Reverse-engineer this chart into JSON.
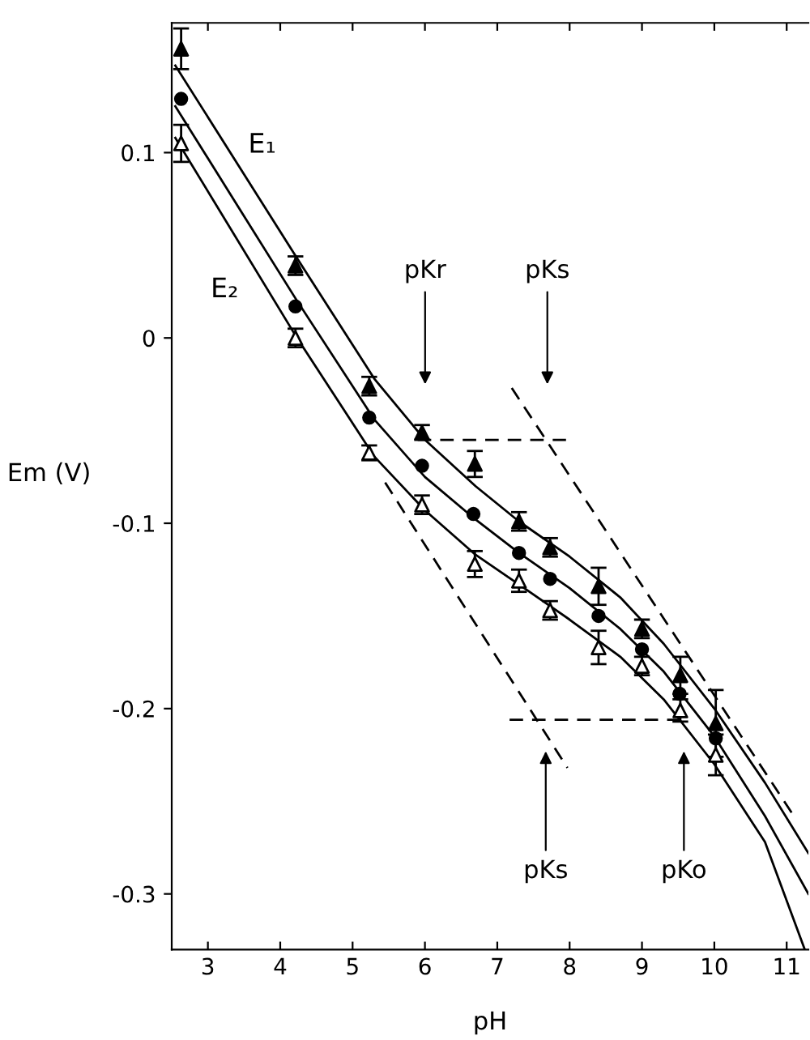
{
  "chart_data": {
    "type": "scatter",
    "xlabel": "pH",
    "ylabel": "Em (V)",
    "xlim": [
      2.5,
      11.3
    ],
    "ylim": [
      -0.33,
      0.17
    ],
    "xticks": [
      3,
      4,
      5,
      6,
      7,
      8,
      9,
      10,
      11
    ],
    "yticks": [
      -0.3,
      -0.2,
      -0.1,
      0,
      0.1
    ],
    "grid": false,
    "series": [
      {
        "marker": "triangle",
        "color": "#000000",
        "x": [
          2.63,
          4.21,
          5.23,
          5.96,
          6.69,
          7.3,
          7.73,
          8.4,
          9.0,
          9.53,
          10.02
        ],
        "values": [
          0.156,
          0.039,
          -0.026,
          -0.051,
          -0.068,
          -0.099,
          -0.113,
          -0.134,
          -0.157,
          -0.182,
          -0.208
        ],
        "errors": [
          0.011,
          0.005,
          0.005,
          0.004,
          0.007,
          0.005,
          0.005,
          0.01,
          0.005,
          0.01,
          0.018
        ]
      },
      {
        "marker": "circle",
        "color": "#000000",
        "x": [
          2.63,
          4.21,
          5.23,
          5.96,
          6.67,
          7.3,
          7.73,
          8.4,
          9.0,
          9.52,
          10.02
        ],
        "values": [
          0.129,
          0.017,
          -0.043,
          -0.069,
          -0.095,
          -0.116,
          -0.13,
          -0.15,
          -0.168,
          -0.192,
          -0.216
        ]
      },
      {
        "marker": "triangle-open",
        "color": "#000000",
        "x": [
          2.63,
          4.21,
          5.23,
          5.96,
          6.69,
          7.3,
          7.73,
          8.4,
          9.0,
          9.53,
          10.02
        ],
        "values": [
          0.105,
          0.0,
          -0.062,
          -0.09,
          -0.122,
          -0.131,
          -0.147,
          -0.167,
          -0.177,
          -0.201,
          -0.225
        ],
        "errors": [
          0.01,
          0.005,
          0.004,
          0.005,
          0.007,
          0.006,
          0.005,
          0.009,
          0.005,
          0.006,
          0.011
        ]
      },
      {
        "type": "line",
        "color": "#000000",
        "line_style": "solid",
        "x": [
          2.55,
          4.2,
          5.3,
          6.0,
          6.7,
          7.3,
          8.0,
          8.7,
          9.3,
          10.0,
          10.7,
          11.3
        ],
        "values": [
          0.147,
          0.045,
          -0.022,
          -0.055,
          -0.08,
          -0.099,
          -0.118,
          -0.14,
          -0.165,
          -0.2,
          -0.24,
          -0.278
        ]
      },
      {
        "type": "line",
        "color": "#000000",
        "line_style": "solid",
        "x": [
          2.55,
          4.2,
          5.3,
          6.0,
          6.7,
          7.3,
          8.0,
          8.7,
          9.3,
          10.0,
          10.7,
          11.3
        ],
        "values": [
          0.125,
          0.022,
          -0.044,
          -0.075,
          -0.098,
          -0.116,
          -0.135,
          -0.157,
          -0.18,
          -0.215,
          -0.258,
          -0.3
        ]
      },
      {
        "type": "line",
        "color": "#000000",
        "line_style": "solid",
        "x": [
          2.55,
          4.2,
          5.3,
          6.0,
          6.7,
          7.3,
          8.0,
          8.7,
          9.3,
          10.0,
          10.7,
          11.25
        ],
        "values": [
          0.108,
          0.002,
          -0.064,
          -0.093,
          -0.117,
          -0.133,
          -0.152,
          -0.172,
          -0.195,
          -0.23,
          -0.272,
          -0.33
        ]
      },
      {
        "type": "line",
        "color": "#000000",
        "line_style": "dashed",
        "x": [
          5.9,
          7.95
        ],
        "values": [
          -0.055,
          -0.055
        ]
      },
      {
        "type": "line",
        "color": "#000000",
        "line_style": "dashed",
        "x": [
          7.17,
          9.58
        ],
        "values": [
          -0.206,
          -0.206
        ]
      },
      {
        "type": "line",
        "color": "#000000",
        "line_style": "dashed",
        "x": [
          5.45,
          7.97
        ],
        "values": [
          -0.078,
          -0.232
        ]
      },
      {
        "type": "line",
        "color": "#000000",
        "line_style": "dashed",
        "x": [
          7.2,
          11.1
        ],
        "values": [
          -0.027,
          -0.258
        ]
      }
    ],
    "annotations": [
      "E₁",
      "E₂",
      "pKr",
      "pKs",
      "pKs",
      "pKo"
    ]
  }
}
